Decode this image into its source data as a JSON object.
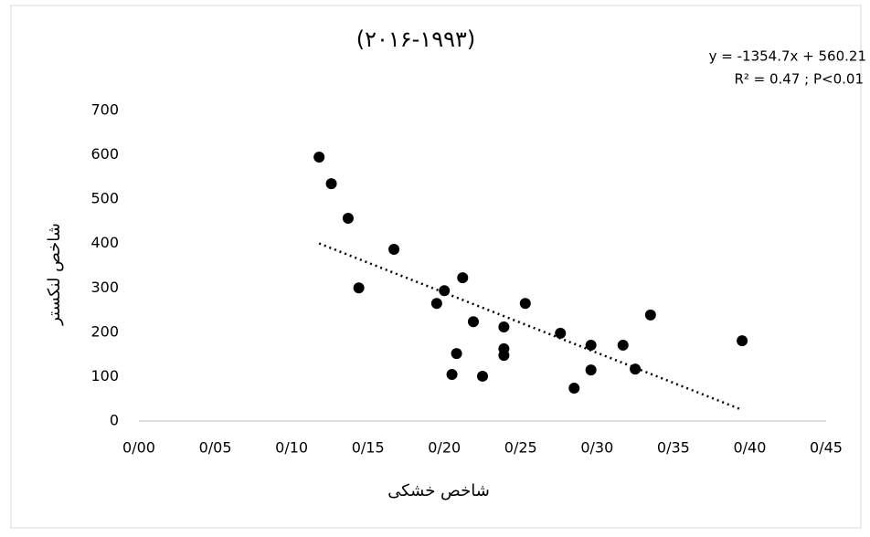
{
  "chart_data": {
    "type": "scatter",
    "title": "(۲۰۱۶-۱۹۹۳)",
    "x_label": "شاخص خشکی",
    "y_label": "شاخص لنکستر",
    "color": "#000000",
    "x": [
      0.118,
      0.126,
      0.137,
      0.144,
      0.167,
      0.195,
      0.2,
      0.212,
      0.208,
      0.205,
      0.219,
      0.225,
      0.239,
      0.239,
      0.239,
      0.253,
      0.276,
      0.285,
      0.296,
      0.296,
      0.317,
      0.325,
      0.335,
      0.395
    ],
    "values": [
      595,
      535,
      457,
      300,
      387,
      265,
      294,
      323,
      152,
      105,
      224,
      101,
      212,
      163,
      148,
      265,
      198,
      74,
      171,
      115,
      171,
      117,
      239,
      181
    ],
    "xlim": [
      0,
      0.45
    ],
    "xticks": [
      {
        "value": 0,
        "label": "0/00"
      },
      {
        "value": 0.05,
        "label": "0/05"
      },
      {
        "value": 0.1,
        "label": "0/10"
      },
      {
        "value": 0.15,
        "label": "0/15"
      },
      {
        "value": 0.2,
        "label": "0/20"
      },
      {
        "value": 0.25,
        "label": "0/25"
      },
      {
        "value": 0.3,
        "label": "0/30"
      },
      {
        "value": 0.35,
        "label": "0/35"
      },
      {
        "value": 0.4,
        "label": "0/40"
      },
      {
        "value": 0.45,
        "label": "0/45"
      }
    ],
    "ylim": [
      0,
      700
    ],
    "yticks": [
      0,
      100,
      200,
      300,
      400,
      500,
      600,
      700
    ],
    "trendline": {
      "slope": -1354.7,
      "intercept": 560.21,
      "x_range": [
        0.118,
        0.395
      ],
      "color": "#000000",
      "equation": "y = -1354.7x + 560.21",
      "stats": "R² = 0.47 ; P<0.01"
    }
  }
}
